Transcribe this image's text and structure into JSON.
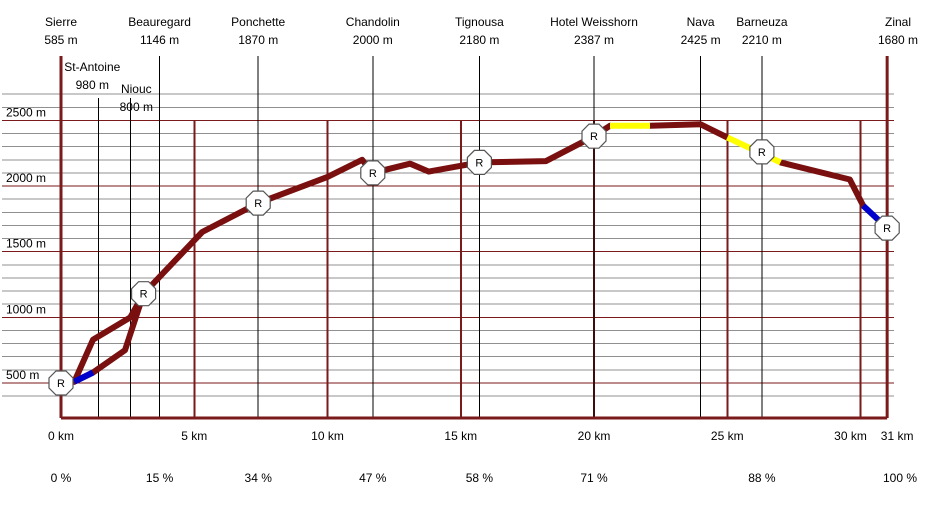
{
  "chart_data": {
    "type": "line",
    "x_unit": "km",
    "y_unit": "m",
    "xlim": [
      0,
      31
    ],
    "ylim": [
      300,
      3000
    ],
    "y_ticks": [
      {
        "value": 500,
        "label": "500 m"
      },
      {
        "value": 1000,
        "label": "1000 m"
      },
      {
        "value": 1500,
        "label": "1500 m"
      },
      {
        "value": 2000,
        "label": "2000 m"
      },
      {
        "value": 2500,
        "label": "2500 m"
      }
    ],
    "y_minor_step": 100,
    "x_ticks": [
      {
        "value": 0,
        "label": "0 km"
      },
      {
        "value": 5,
        "label": "5 km"
      },
      {
        "value": 10,
        "label": "10 km"
      },
      {
        "value": 15,
        "label": "15 km"
      },
      {
        "value": 20,
        "label": "20 km"
      },
      {
        "value": 25,
        "label": "25 km"
      },
      {
        "value": 30,
        "label": "30 km"
      },
      {
        "value": 31,
        "label": "31 km"
      }
    ],
    "waypoints": [
      {
        "name": "Sierre",
        "alt_label": "585 m",
        "km": 0,
        "pct": "0 %"
      },
      {
        "name": "St-Antoine",
        "alt_label": "980 m",
        "km": 1.4
      },
      {
        "name": "Niouc",
        "alt_label": "800 m",
        "km": 2.6
      },
      {
        "name": "Beauregard",
        "alt_label": "1146 m",
        "km": 3.7,
        "pct": "15 %"
      },
      {
        "name": "Ponchette",
        "alt_label": "1870 m",
        "km": 7.4,
        "pct": "34 %"
      },
      {
        "name": "Chandolin",
        "alt_label": "2000 m",
        "km": 11.7,
        "pct": "47 %"
      },
      {
        "name": "Tignousa",
        "alt_label": "2180 m",
        "km": 15.7,
        "pct": "58 %"
      },
      {
        "name": "Hotel Weisshorn",
        "alt_label": "2387 m",
        "km": 20,
        "pct": "71 %"
      },
      {
        "name": "Nava",
        "alt_label": "2425 m",
        "km": 24,
        "pct": ""
      },
      {
        "name": "Barneuza",
        "alt_label": "2210 m",
        "km": 26.3,
        "pct": "88 %"
      },
      {
        "name": "Zinal",
        "alt_label": "1680 m",
        "km": 31,
        "pct": "100 %"
      }
    ],
    "series": [
      {
        "color": "#7a0f0f",
        "points": [
          [
            0.5,
            510
          ],
          [
            1.2,
            830
          ],
          [
            2.6,
            1000
          ],
          [
            3.1,
            1180
          ],
          [
            5.3,
            1650
          ],
          [
            7.4,
            1870
          ],
          [
            10,
            2070
          ],
          [
            11.3,
            2200
          ],
          [
            11.7,
            2100
          ],
          [
            13.1,
            2170
          ],
          [
            13.8,
            2110
          ],
          [
            15.7,
            2180
          ],
          [
            18.2,
            2190
          ],
          [
            20,
            2380
          ],
          [
            20.6,
            2460
          ]
        ]
      },
      {
        "color": "#7a0f0f",
        "points": [
          [
            0.5,
            510
          ],
          [
            1.2,
            580
          ],
          [
            2.4,
            750
          ],
          [
            3.1,
            1180
          ]
        ]
      },
      {
        "color": "#7a0f0f",
        "points": [
          [
            22.1,
            2460
          ],
          [
            24,
            2470
          ],
          [
            25,
            2370
          ]
        ]
      },
      {
        "color": "#7a0f0f",
        "points": [
          [
            27,
            2180
          ],
          [
            29.6,
            2050
          ],
          [
            30.1,
            1850
          ]
        ]
      }
    ],
    "highlights": [
      {
        "color": "#ffff00",
        "points": [
          [
            20.6,
            2460
          ],
          [
            22.1,
            2460
          ]
        ]
      },
      {
        "color": "#ffff00",
        "points": [
          [
            25,
            2370
          ],
          [
            27,
            2180
          ]
        ]
      },
      {
        "color": "#0000cc",
        "points": [
          [
            0.5,
            510
          ],
          [
            1.2,
            580
          ]
        ]
      },
      {
        "color": "#0000cc",
        "points": [
          [
            30.1,
            1850
          ],
          [
            31,
            1680
          ]
        ]
      }
    ],
    "markers": [
      {
        "label": "R",
        "km": 0,
        "alt": 500
      },
      {
        "label": "R",
        "km": 3.1,
        "alt": 1180
      },
      {
        "label": "R",
        "km": 7.4,
        "alt": 1870
      },
      {
        "label": "R",
        "km": 11.7,
        "alt": 2100
      },
      {
        "label": "R",
        "km": 15.7,
        "alt": 2180
      },
      {
        "label": "R",
        "km": 20,
        "alt": 2380
      },
      {
        "label": "R",
        "km": 26.3,
        "alt": 2260
      },
      {
        "label": "R",
        "km": 31,
        "alt": 1680
      }
    ],
    "colors": {
      "route": "#7a0f0f",
      "grid_major": "#7a1a1a",
      "grid_minor": "#909090",
      "marker_fill": "#ffffff",
      "marker_stroke": "#555555"
    }
  }
}
